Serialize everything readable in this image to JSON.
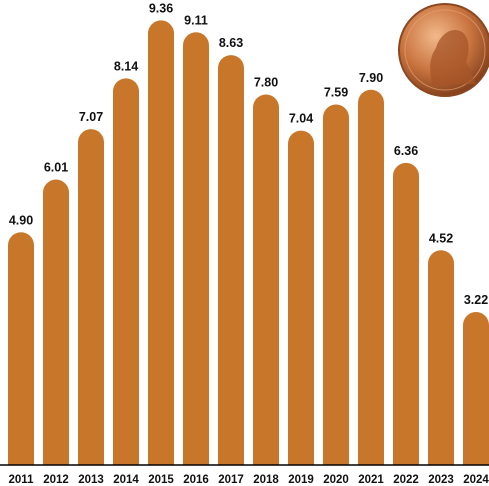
{
  "chart_data": {
    "type": "bar",
    "categories": [
      "2011",
      "2012",
      "2013",
      "2014",
      "2015",
      "2016",
      "2017",
      "2018",
      "2019",
      "2020",
      "2021",
      "2022",
      "2023",
      "2024"
    ],
    "values": [
      4.9,
      6.01,
      7.07,
      8.14,
      9.36,
      9.11,
      8.63,
      7.8,
      7.04,
      7.59,
      7.9,
      6.36,
      4.52,
      3.22
    ],
    "value_labels": [
      "4.90",
      "6.01",
      "7.07",
      "8.14",
      "9.36",
      "9.11",
      "8.63",
      "7.80",
      "7.04",
      "7.59",
      "7.90",
      "6.36",
      "4.52",
      "3.22"
    ],
    "color": "#c8772a"
  }
}
